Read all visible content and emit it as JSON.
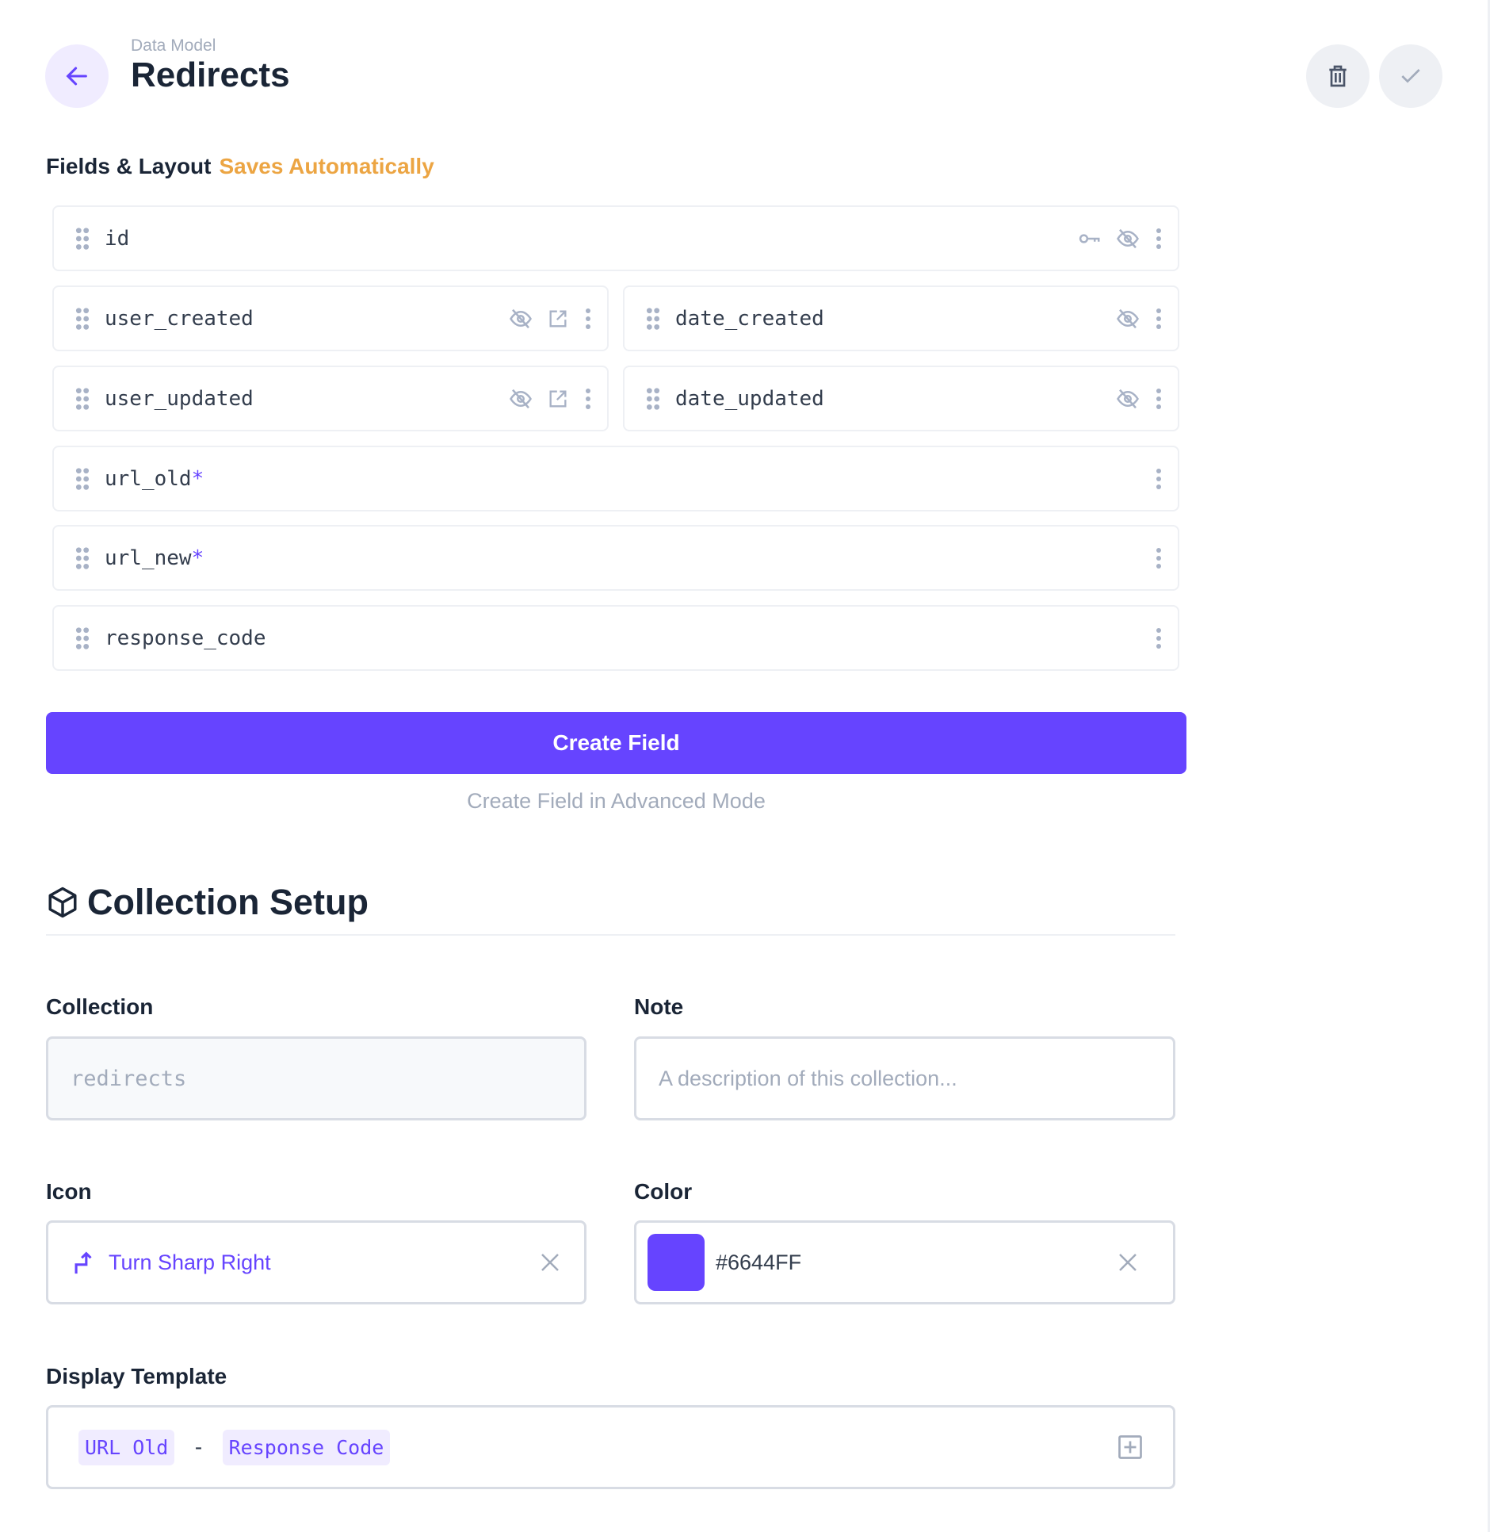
{
  "header": {
    "breadcrumb": "Data Model",
    "title": "Redirects"
  },
  "fields_section": {
    "title": "Fields & Layout",
    "status": "Saves Automatically"
  },
  "fields": [
    {
      "name": "id",
      "required": "",
      "icons": [
        "key-icon",
        "eye-off-icon",
        "more-vertical-icon"
      ]
    },
    {
      "name": "user_created",
      "required": "",
      "icons": [
        "eye-off-icon",
        "external-link-icon",
        "more-vertical-icon"
      ]
    },
    {
      "name": "date_created",
      "required": "",
      "icons": [
        "eye-off-icon",
        "more-vertical-icon"
      ]
    },
    {
      "name": "user_updated",
      "required": "",
      "icons": [
        "eye-off-icon",
        "external-link-icon",
        "more-vertical-icon"
      ]
    },
    {
      "name": "date_updated",
      "required": "",
      "icons": [
        "eye-off-icon",
        "more-vertical-icon"
      ]
    },
    {
      "name": "url_old",
      "required": "*",
      "icons": [
        "more-vertical-icon"
      ]
    },
    {
      "name": "url_new",
      "required": "*",
      "icons": [
        "more-vertical-icon"
      ]
    },
    {
      "name": "response_code",
      "required": "",
      "icons": [
        "more-vertical-icon"
      ]
    }
  ],
  "actions": {
    "create_field": "Create Field",
    "create_advanced": "Create Field in Advanced Mode"
  },
  "setup": {
    "title": "Collection Setup",
    "collection": {
      "label": "Collection",
      "value": "redirects"
    },
    "note": {
      "label": "Note",
      "placeholder": "A description of this collection..."
    },
    "icon": {
      "label": "Icon",
      "value": "Turn Sharp Right"
    },
    "color": {
      "label": "Color",
      "value": "#6644FF"
    },
    "display_template": {
      "label": "Display Template",
      "tokens": [
        "URL Old",
        "Response Code"
      ],
      "separator": "-"
    }
  },
  "colors": {
    "accent": "#6644FF",
    "warning": "#ECA543"
  }
}
